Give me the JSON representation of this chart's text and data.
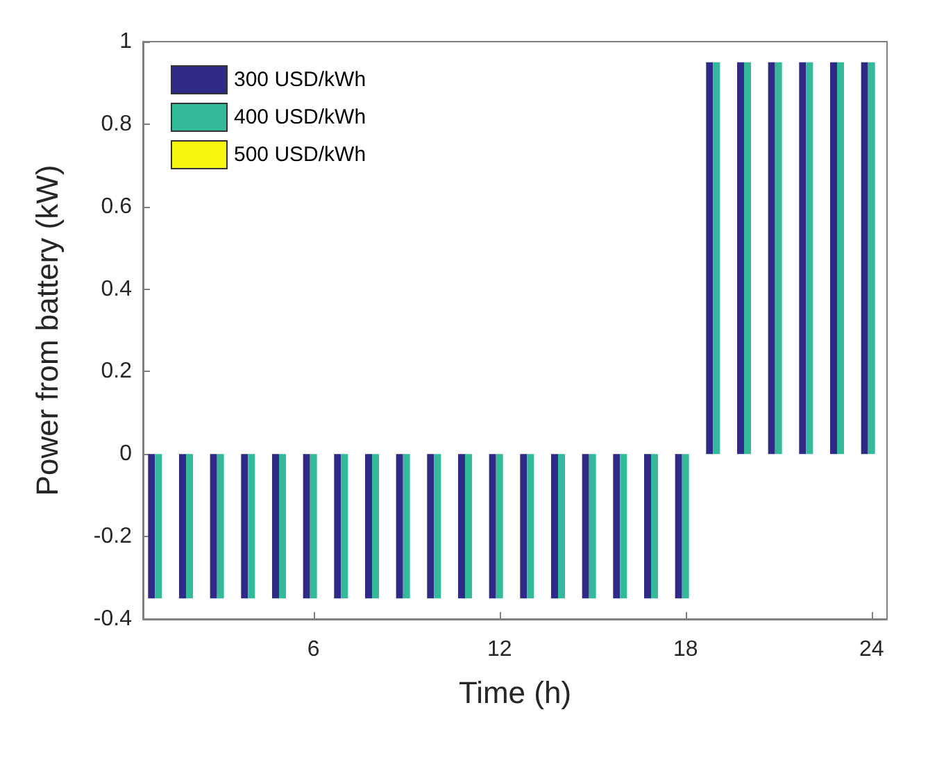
{
  "chart_data": {
    "type": "bar",
    "xlabel": "Time (h)",
    "ylabel": "Power from battery (kW)",
    "x": [
      1,
      2,
      3,
      4,
      5,
      6,
      7,
      8,
      9,
      10,
      11,
      12,
      13,
      14,
      15,
      16,
      17,
      18,
      19,
      20,
      21,
      22,
      23,
      24
    ],
    "series": [
      {
        "name": "300 USD/kWh",
        "color": "#2e2a85",
        "values": [
          -0.35,
          -0.35,
          -0.35,
          -0.35,
          -0.35,
          -0.35,
          -0.35,
          -0.35,
          -0.35,
          -0.35,
          -0.35,
          -0.35,
          -0.35,
          -0.35,
          -0.35,
          -0.35,
          -0.35,
          -0.35,
          0.95,
          0.95,
          0.95,
          0.95,
          0.95,
          0.95
        ]
      },
      {
        "name": "400 USD/kWh",
        "color": "#35b99b",
        "values": [
          -0.35,
          -0.35,
          -0.35,
          -0.35,
          -0.35,
          -0.35,
          -0.35,
          -0.35,
          -0.35,
          -0.35,
          -0.35,
          -0.35,
          -0.35,
          -0.35,
          -0.35,
          -0.35,
          -0.35,
          -0.35,
          0.95,
          0.95,
          0.95,
          0.95,
          0.95,
          0.95
        ]
      },
      {
        "name": "500 USD/kWh",
        "color": "#f5f50e",
        "values": [
          0,
          0,
          0,
          0,
          0,
          0,
          0,
          0,
          0,
          0,
          0,
          0,
          0,
          0,
          0,
          0,
          0,
          0,
          0,
          0,
          0,
          0,
          0,
          0
        ]
      }
    ],
    "xlim": [
      0.5,
      24.5
    ],
    "xticks": [
      6,
      12,
      18,
      24
    ],
    "ylim": [
      -0.4,
      1
    ],
    "yticks": [
      -0.4,
      -0.2,
      0,
      0.2,
      0.4,
      0.6,
      0.8,
      1
    ],
    "legend": "top left",
    "grid": false
  }
}
